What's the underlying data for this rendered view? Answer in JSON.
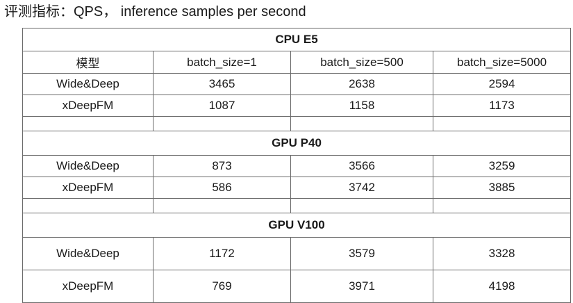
{
  "title": "评测指标：QPS， inference samples per second",
  "columns": [
    "模型",
    "batch_size=1",
    "batch_size=500",
    "batch_size=5000"
  ],
  "sections": [
    {
      "name": "CPU E5",
      "rows": [
        {
          "model": "Wide&Deep",
          "values": [
            "3465",
            "2638",
            "2594"
          ]
        },
        {
          "model": "xDeepFM",
          "values": [
            "1087",
            "1158",
            "1173"
          ]
        }
      ]
    },
    {
      "name": "GPU P40",
      "rows": [
        {
          "model": "Wide&Deep",
          "values": [
            "873",
            "3566",
            "3259"
          ]
        },
        {
          "model": "xDeepFM",
          "values": [
            "586",
            "3742",
            "3885"
          ]
        }
      ]
    },
    {
      "name": "GPU V100",
      "rows": [
        {
          "model": "Wide&Deep",
          "values": [
            "1172",
            "3579",
            "3328"
          ]
        },
        {
          "model": "xDeepFM",
          "values": [
            "769",
            "3971",
            "4198"
          ]
        }
      ]
    }
  ]
}
